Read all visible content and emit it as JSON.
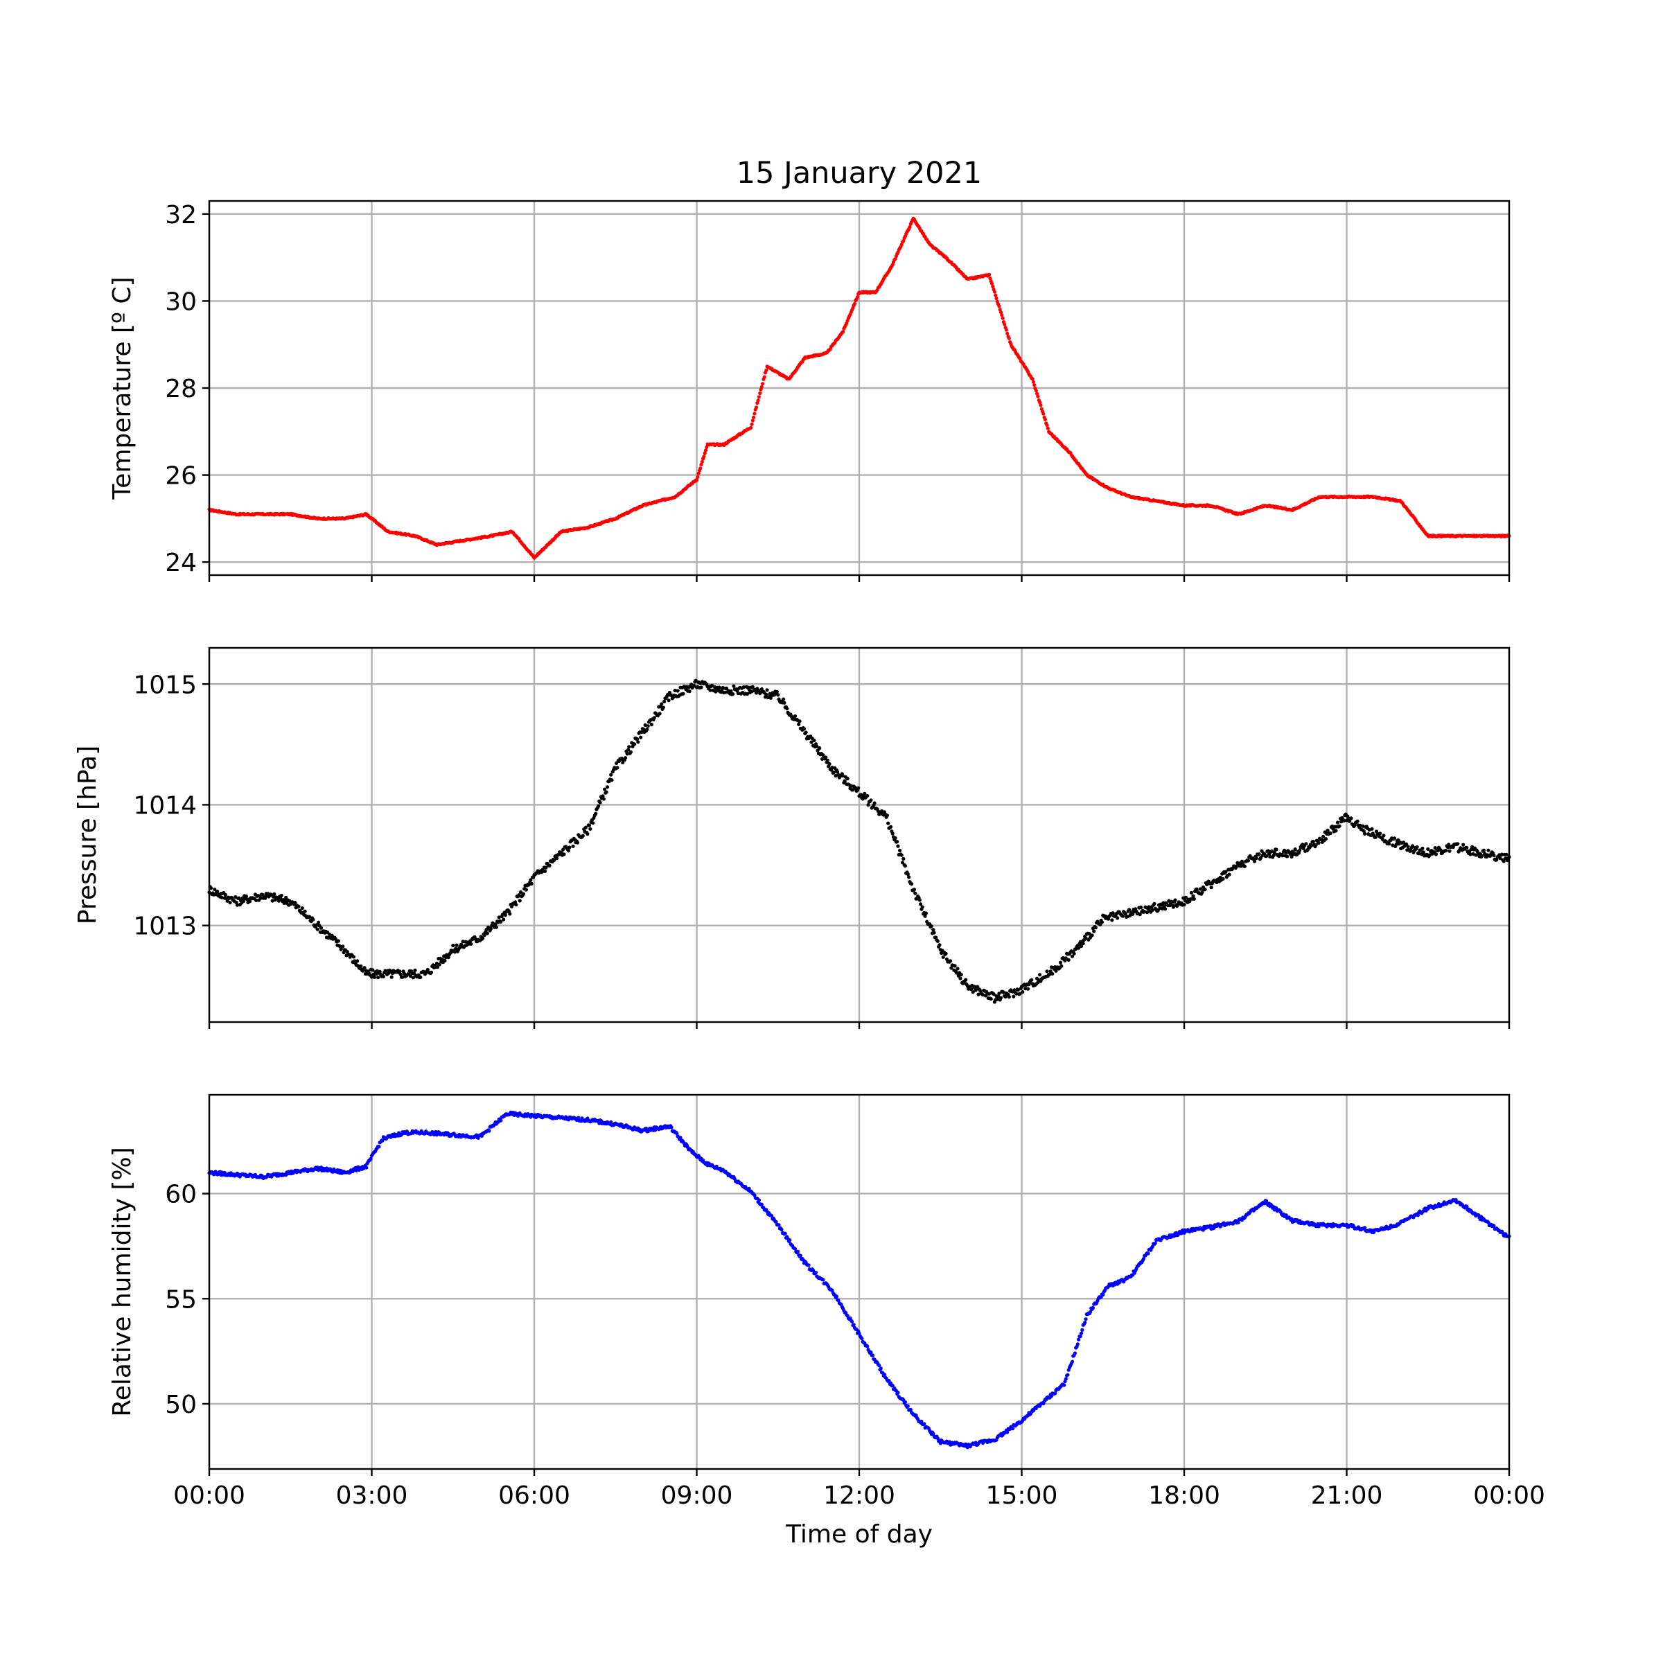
{
  "figure": {
    "title": "15 January 2021",
    "xlabel": "Time of day",
    "x_tick_labels": [
      "00:00",
      "03:00",
      "06:00",
      "09:00",
      "12:00",
      "15:00",
      "18:00",
      "21:00",
      "00:00"
    ]
  },
  "chart_data": [
    {
      "type": "scatter",
      "ylabel": "Temperature [º C]",
      "color": "#ff0000",
      "x_unit": "hours",
      "xlim": [
        0,
        24
      ],
      "ylim": [
        23.7,
        32.3
      ],
      "yticks": [
        24,
        26,
        28,
        30,
        32
      ],
      "x": [
        0,
        0.5,
        1,
        1.5,
        2,
        2.5,
        2.9,
        3.3,
        3.8,
        4.2,
        4.7,
        5.2,
        5.6,
        6,
        6.5,
        7,
        7.5,
        8,
        8.6,
        9,
        9.2,
        9.5,
        10,
        10.3,
        10.7,
        11,
        11.4,
        11.7,
        12,
        12.3,
        12.6,
        13,
        13.3,
        13.6,
        14,
        14.4,
        14.8,
        15.2,
        15.5,
        15.9,
        16.2,
        16.6,
        17,
        17.5,
        18,
        18.5,
        19,
        19.5,
        20,
        20.5,
        21,
        21.5,
        22,
        22.5,
        23,
        23.5,
        24
      ],
      "y": [
        25.2,
        25.1,
        25.1,
        25.1,
        25.0,
        25.0,
        25.1,
        24.7,
        24.6,
        24.4,
        24.5,
        24.6,
        24.7,
        24.1,
        24.7,
        24.8,
        25.0,
        25.3,
        25.5,
        25.9,
        26.7,
        26.7,
        27.1,
        28.5,
        28.2,
        28.7,
        28.8,
        29.3,
        30.2,
        30.2,
        30.8,
        31.9,
        31.3,
        31.0,
        30.5,
        30.6,
        29.0,
        28.2,
        27.0,
        26.5,
        26.0,
        25.7,
        25.5,
        25.4,
        25.3,
        25.3,
        25.1,
        25.3,
        25.2,
        25.5,
        25.5,
        25.5,
        25.4,
        24.6,
        24.6,
        24.6,
        24.6
      ]
    },
    {
      "type": "scatter",
      "ylabel": "Pressure [hPa]",
      "color": "#000000",
      "x_unit": "hours",
      "xlim": [
        0,
        24
      ],
      "ylim": [
        1012.2,
        1015.3
      ],
      "yticks": [
        1013,
        1014,
        1015
      ],
      "x": [
        0,
        0.5,
        1,
        1.5,
        2,
        2.5,
        2.9,
        3.5,
        4,
        4.5,
        5,
        5.5,
        6,
        6.5,
        7,
        7.5,
        8,
        8.5,
        9,
        9.5,
        10,
        10.5,
        11,
        11.5,
        12,
        12.5,
        13,
        13.5,
        14,
        14.5,
        14.9,
        15.5,
        16,
        16.5,
        17,
        17.5,
        18,
        18.5,
        19,
        19.5,
        20,
        20.5,
        21,
        21.3,
        21.8,
        22.5,
        23,
        23.5,
        24
      ],
      "y": [
        1013.3,
        1013.2,
        1013.25,
        1013.2,
        1013.0,
        1012.8,
        1012.6,
        1012.6,
        1012.6,
        1012.8,
        1012.9,
        1013.1,
        1013.4,
        1013.6,
        1013.8,
        1014.3,
        1014.6,
        1014.9,
        1015.0,
        1014.95,
        1014.95,
        1014.9,
        1014.6,
        1014.3,
        1014.1,
        1013.9,
        1013.3,
        1012.8,
        1012.5,
        1012.4,
        1012.45,
        1012.6,
        1012.8,
        1013.05,
        1013.1,
        1013.15,
        1013.2,
        1013.35,
        1013.5,
        1013.6,
        1013.6,
        1013.7,
        1013.9,
        1013.8,
        1013.7,
        1013.6,
        1013.65,
        1013.6,
        1013.55
      ]
    },
    {
      "type": "scatter",
      "ylabel": "Relative humidity [%]",
      "color": "#0000ff",
      "x_unit": "hours",
      "xlim": [
        0,
        24
      ],
      "ylim": [
        46.9,
        64.7
      ],
      "yticks": [
        50,
        55,
        60
      ],
      "x": [
        0,
        0.5,
        1,
        1.5,
        2,
        2.5,
        2.9,
        3.2,
        3.6,
        4,
        4.5,
        5,
        5.5,
        6,
        6.5,
        7,
        7.5,
        8,
        8.5,
        8.9,
        9.2,
        9.5,
        10,
        10.5,
        11,
        11.5,
        12,
        12.5,
        13,
        13.5,
        14,
        14.5,
        15,
        15.5,
        15.8,
        16.2,
        16.6,
        17,
        17.5,
        18,
        18.5,
        19,
        19.5,
        20,
        20.5,
        21,
        21.5,
        22,
        22.5,
        23,
        23.5,
        24
      ],
      "y": [
        61.0,
        60.9,
        60.8,
        61.0,
        61.2,
        61.0,
        61.3,
        62.6,
        62.9,
        62.9,
        62.8,
        62.7,
        63.8,
        63.7,
        63.6,
        63.5,
        63.3,
        63.0,
        63.2,
        62.0,
        61.4,
        61.1,
        60.1,
        58.5,
        56.7,
        55.4,
        53.3,
        51.2,
        49.5,
        48.2,
        48.0,
        48.3,
        49.2,
        50.3,
        51.0,
        54.2,
        55.6,
        56.0,
        57.8,
        58.2,
        58.4,
        58.7,
        59.6,
        58.7,
        58.5,
        58.5,
        58.2,
        58.6,
        59.3,
        59.7,
        58.8,
        57.9
      ]
    }
  ]
}
